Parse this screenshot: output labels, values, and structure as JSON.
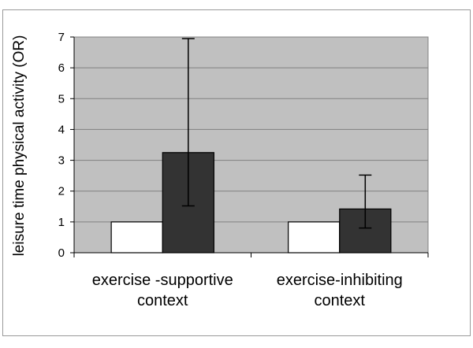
{
  "chart_data": {
    "type": "bar",
    "title": "",
    "xlabel": "",
    "ylabel": "leisure time physical activity (OR)",
    "categories": [
      [
        "exercise -supportive",
        "context"
      ],
      [
        "exercise-inhibiting",
        "context"
      ]
    ],
    "series": [
      {
        "values": [
          1,
          1
        ],
        "color": "#ffffff"
      },
      {
        "values": [
          3.25,
          1.42
        ],
        "error_low": [
          1.52,
          0.8
        ],
        "error_high": [
          6.95,
          2.52
        ],
        "color": "#333333"
      }
    ],
    "ylim": [
      0,
      7
    ],
    "yticks": [
      0,
      1,
      2,
      3,
      4,
      5,
      6,
      7
    ],
    "grid": true,
    "plot_background": "#c0c0c0",
    "gridline_color": "#808080",
    "legend": "none"
  }
}
